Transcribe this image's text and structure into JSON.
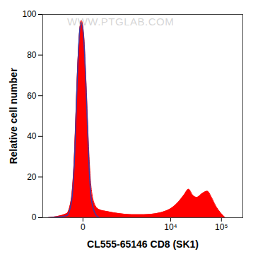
{
  "chart_data": {
    "type": "area",
    "x_label": "CL555-65146 CD8 (SK1)",
    "y_label": "Relative cell number",
    "log": "x",
    "grid": false,
    "xlim": [
      -1000,
      262144
    ],
    "xticks": [
      0,
      {
        "value": 10000,
        "label": "10⁴"
      },
      {
        "value": 100000,
        "label": "10⁵"
      }
    ],
    "ylim": [
      0,
      100
    ],
    "yticks": [
      0,
      20,
      40,
      60,
      80,
      100
    ],
    "annotations": [
      {
        "text": "WWW.PTGLAB.COM"
      }
    ],
    "series": [
      {
        "type": "area",
        "color": "#ff0000",
        "x": [
          -751,
          -212,
          -131,
          -87,
          -57,
          -31,
          -15,
          7,
          31,
          57,
          87,
          144,
          212,
          392,
          820,
          1570,
          2870,
          5100,
          7450,
          10840,
          14600,
          18200,
          22700,
          27400,
          33000,
          42400,
          52800,
          63900,
          76500,
          99200,
          119000
        ],
        "values": [
          0,
          2,
          10,
          35,
          70,
          92,
          97,
          90,
          65,
          35,
          15,
          6,
          4,
          3,
          2,
          1.5,
          1.5,
          2,
          3,
          5,
          8,
          11,
          14,
          11,
          10,
          12,
          13,
          10,
          6,
          2,
          0
        ]
      },
      {
        "type": "line",
        "color": "#3a3aa8",
        "x": [
          -751,
          -212,
          -131,
          -87,
          -57,
          -31,
          -15,
          7,
          31,
          57,
          87,
          144,
          212
        ],
        "values": [
          0,
          1,
          8,
          32,
          68,
          92,
          96,
          88,
          62,
          30,
          10,
          2,
          0
        ]
      }
    ]
  }
}
